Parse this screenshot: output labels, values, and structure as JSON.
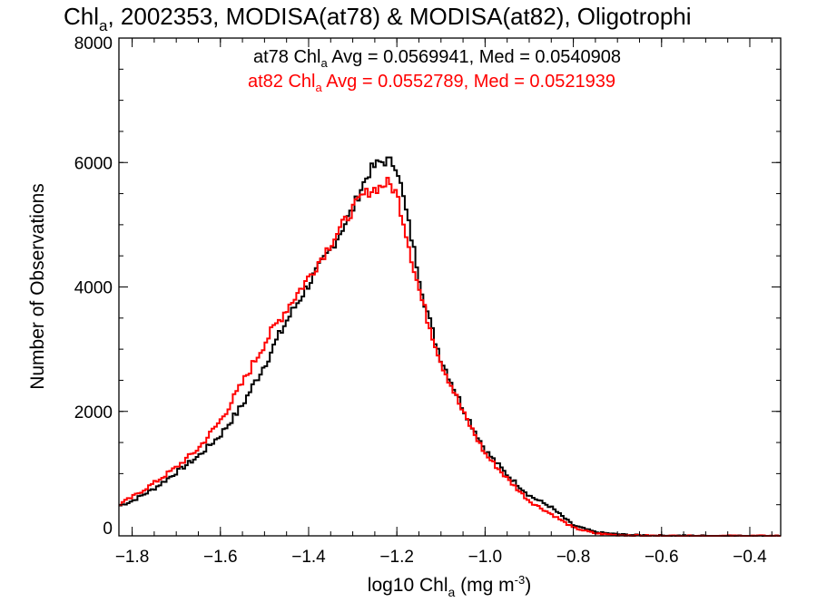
{
  "chart_data": {
    "type": "line",
    "step": true,
    "title": {
      "prefix": "Chl",
      "sub": "a",
      "rest": ", 2002353, MODISA(at78) & MODISA(at82), Oligotrophi"
    },
    "xlabel": {
      "prefix": "log10 Chl",
      "sub": "a",
      "mid": " (mg m",
      "sup": "-3",
      "end": ")"
    },
    "ylabel": "Number of Observations",
    "xlim": [
      -1.83,
      -0.33
    ],
    "ylim": [
      0,
      8000
    ],
    "x_ticks": [
      -1.8,
      -1.6,
      -1.4,
      -1.2,
      -1.0,
      -0.8,
      -0.6,
      -0.4
    ],
    "x_tick_labels": [
      "−1.8",
      "−1.6",
      "−1.4",
      "−1.2",
      "−1.0",
      "−0.8",
      "−0.6",
      "−0.4"
    ],
    "y_ticks": [
      0,
      2000,
      4000,
      6000,
      8000
    ],
    "y_tick_labels": [
      "0",
      "2000",
      "4000",
      "6000",
      "8000"
    ],
    "x_minor_step": 0.05,
    "y_minor_step": 500,
    "grid": false,
    "legend": "top-center",
    "series": [
      {
        "name": "at78",
        "color": "#000000",
        "stats": {
          "a": "at78 Chl",
          "sub": "a",
          "b": " Avg = 0.0569941, Med = 0.0540908"
        },
        "x": [
          -1.83,
          -1.8,
          -1.75,
          -1.7,
          -1.65,
          -1.6,
          -1.55,
          -1.5,
          -1.45,
          -1.4,
          -1.35,
          -1.3,
          -1.28,
          -1.26,
          -1.24,
          -1.22,
          -1.2,
          -1.18,
          -1.16,
          -1.14,
          -1.12,
          -1.1,
          -1.05,
          -1.0,
          -0.95,
          -0.9,
          -0.85,
          -0.8,
          -0.75,
          -0.7,
          -0.65,
          -0.6,
          -0.5,
          -0.4,
          -0.33
        ],
        "y": [
          480,
          560,
          760,
          1020,
          1280,
          1620,
          2100,
          2750,
          3450,
          4050,
          4600,
          5250,
          5600,
          5880,
          6000,
          6030,
          5950,
          5250,
          4550,
          3850,
          3300,
          2850,
          2050,
          1380,
          980,
          650,
          460,
          170,
          60,
          25,
          10,
          5,
          0,
          0,
          0
        ]
      },
      {
        "name": "at82",
        "color": "#ff0000",
        "stats": {
          "a": "at82 Chl",
          "sub": "a",
          "b": " Avg = 0.0552789, Med = 0.0521939"
        },
        "x": [
          -1.83,
          -1.8,
          -1.75,
          -1.7,
          -1.65,
          -1.6,
          -1.55,
          -1.5,
          -1.45,
          -1.4,
          -1.35,
          -1.3,
          -1.28,
          -1.26,
          -1.24,
          -1.22,
          -1.2,
          -1.18,
          -1.16,
          -1.14,
          -1.12,
          -1.1,
          -1.05,
          -1.0,
          -0.95,
          -0.9,
          -0.85,
          -0.8,
          -0.75,
          -0.7,
          -0.65,
          -0.6,
          -0.5,
          -0.4,
          -0.33
        ],
        "y": [
          500,
          620,
          850,
          1100,
          1400,
          1850,
          2450,
          3100,
          3650,
          4150,
          4700,
          5250,
          5450,
          5550,
          5600,
          5680,
          5500,
          4900,
          4250,
          3700,
          3250,
          2800,
          1980,
          1320,
          920,
          560,
          350,
          130,
          40,
          12,
          5,
          0,
          0,
          0,
          0
        ]
      }
    ]
  }
}
